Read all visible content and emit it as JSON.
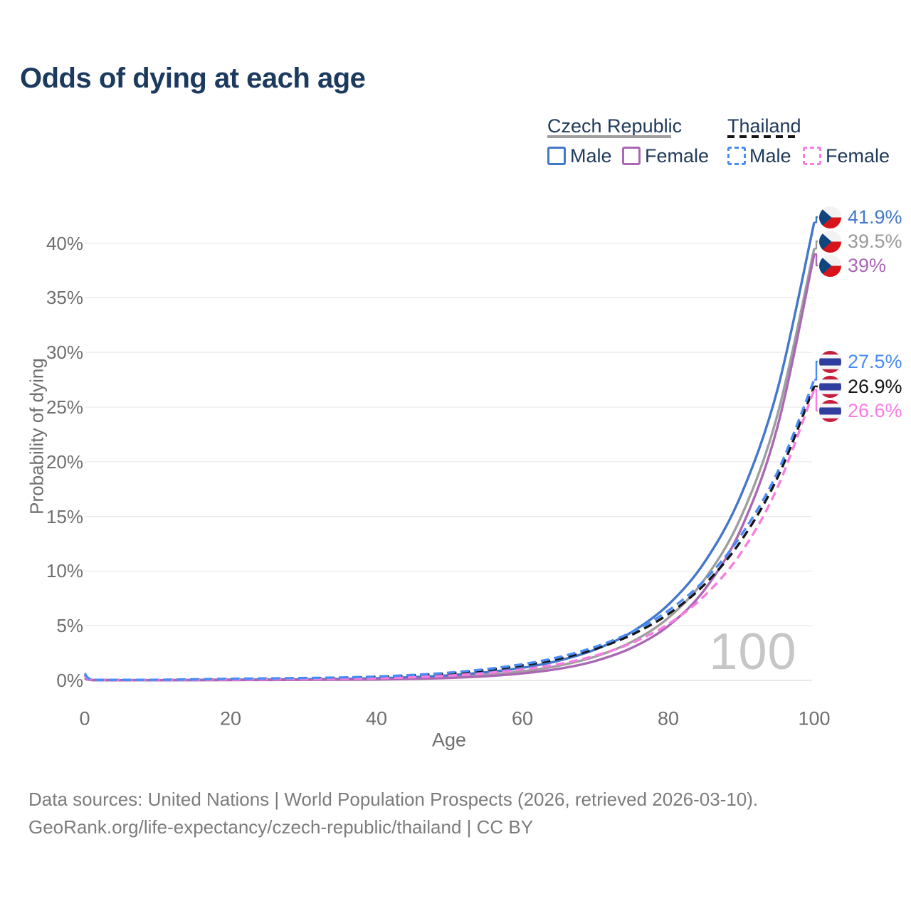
{
  "page": {
    "title": "Odds of dying at each age"
  },
  "legend": {
    "groups": [
      {
        "label": "Czech Republic",
        "line_style": "solid",
        "underline_color": "#9e9e9e",
        "items": [
          {
            "label": "Male",
            "color": "#4377c9"
          },
          {
            "label": "Female",
            "color": "#aa68b4"
          }
        ]
      },
      {
        "label": "Thailand",
        "line_style": "dashed",
        "underline_color": "#161616",
        "items": [
          {
            "label": "Male",
            "color": "#4a8cf5"
          },
          {
            "label": "Female",
            "color": "#f97ce1"
          }
        ]
      }
    ]
  },
  "chart_data": {
    "type": "line",
    "title": "Odds of dying at each age",
    "xlabel": "Age",
    "ylabel": "Probability of dying",
    "xlim": [
      0,
      100
    ],
    "ylim": [
      0,
      42
    ],
    "x_ticks": [
      0,
      20,
      40,
      60,
      80,
      100
    ],
    "y_ticks": [
      0,
      5,
      10,
      15,
      20,
      25,
      30,
      35,
      40
    ],
    "y_tick_suffix": "%",
    "grid": "horizontal",
    "legend_position": "top-right",
    "hover_age_watermark": "100",
    "ages": [
      0,
      1,
      5,
      10,
      15,
      20,
      25,
      30,
      35,
      40,
      45,
      50,
      55,
      60,
      65,
      70,
      75,
      80,
      85,
      90,
      95,
      100
    ],
    "series": [
      {
        "id": "cz-b",
        "country": "Czech Republic",
        "sex": "both",
        "style": "solid",
        "color": "#9e9e9e",
        "end_label": "39.5%",
        "values": [
          0.22,
          0.03,
          0.02,
          0.02,
          0.03,
          0.05,
          0.06,
          0.08,
          0.1,
          0.13,
          0.2,
          0.32,
          0.52,
          0.83,
          1.35,
          2.18,
          3.53,
          5.72,
          9.28,
          15.0,
          24.4,
          39.5
        ]
      },
      {
        "id": "cz-m",
        "country": "Czech Republic",
        "sex": "male",
        "style": "solid",
        "color": "#4377c9",
        "end_label": "41.9%",
        "values": [
          0.25,
          0.04,
          0.02,
          0.02,
          0.04,
          0.07,
          0.08,
          0.09,
          0.13,
          0.19,
          0.3,
          0.47,
          0.74,
          1.15,
          1.81,
          2.83,
          4.43,
          6.93,
          10.85,
          17.0,
          26.7,
          41.9
        ]
      },
      {
        "id": "cz-f",
        "country": "Czech Republic",
        "sex": "female",
        "style": "solid",
        "color": "#aa68b4",
        "end_label": "39%",
        "values": [
          0.2,
          0.03,
          0.015,
          0.015,
          0.02,
          0.03,
          0.04,
          0.05,
          0.06,
          0.08,
          0.14,
          0.23,
          0.38,
          0.64,
          1.06,
          1.78,
          2.98,
          4.98,
          8.33,
          13.9,
          23.3,
          39.0
        ]
      },
      {
        "id": "th-b",
        "country": "Thailand",
        "sex": "both",
        "style": "dashed",
        "color": "#161616",
        "end_label": "26.9%",
        "values": [
          0.5,
          0.07,
          0.04,
          0.05,
          0.08,
          0.11,
          0.14,
          0.17,
          0.23,
          0.31,
          0.45,
          0.65,
          0.94,
          1.37,
          1.98,
          2.88,
          4.18,
          6.07,
          8.8,
          12.8,
          18.6,
          26.9
        ]
      },
      {
        "id": "th-f",
        "country": "Thailand",
        "sex": "female",
        "style": "dashed",
        "color": "#f97ce1",
        "end_label": "26.6%",
        "values": [
          0.45,
          0.06,
          0.03,
          0.04,
          0.06,
          0.08,
          0.1,
          0.12,
          0.15,
          0.19,
          0.29,
          0.44,
          0.66,
          1.0,
          1.5,
          2.27,
          3.42,
          5.15,
          7.77,
          11.7,
          17.7,
          26.6
        ]
      },
      {
        "id": "th-m",
        "country": "Thailand",
        "sex": "male",
        "style": "dashed",
        "color": "#4a8cf5",
        "end_label": "27.5%",
        "values": [
          0.65,
          0.08,
          0.05,
          0.06,
          0.1,
          0.15,
          0.18,
          0.22,
          0.27,
          0.35,
          0.5,
          0.71,
          1.03,
          1.48,
          2.13,
          3.07,
          4.43,
          6.38,
          9.2,
          13.3,
          19.1,
          27.5
        ]
      }
    ],
    "callouts": [
      {
        "flag": "czech-republic",
        "series_id": "cz-m",
        "label": "41.9%",
        "color": "#4377c9"
      },
      {
        "flag": "czech-republic",
        "series_id": "cz-b",
        "label": "39.5%",
        "color": "#9a9a9a"
      },
      {
        "flag": "czech-republic",
        "series_id": "cz-f",
        "label": "39%",
        "color": "#aa68b4"
      },
      {
        "flag": "thailand",
        "series_id": "th-m",
        "label": "27.5%",
        "color": "#4a8cf5"
      },
      {
        "flag": "thailand",
        "series_id": "th-b",
        "label": "26.9%",
        "color": "#161616"
      },
      {
        "flag": "thailand",
        "series_id": "th-f",
        "label": "26.6%",
        "color": "#f97ce1"
      }
    ],
    "flag_colors": {
      "czech_white": "#f2f2f2",
      "czech_red": "#d7141a",
      "czech_blue": "#11457e",
      "thai_red": "#c51f3d",
      "thai_white": "#f4f5f8",
      "thai_blue": "#2f3d9e"
    }
  },
  "footer": {
    "line1": "Data sources: United Nations | World Population Prospects (2026, retrieved 2026-03-10).",
    "line2": "GeoRank.org/life-expectancy/czech-republic/thailand | CC BY"
  }
}
